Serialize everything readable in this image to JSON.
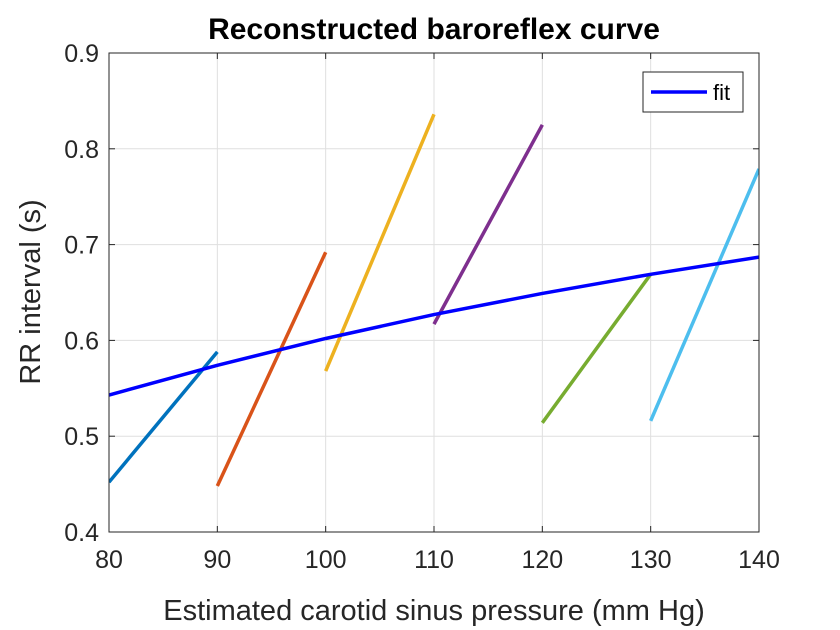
{
  "chart_data": {
    "type": "line",
    "title": "Reconstructed baroreflex curve",
    "xlabel": "Estimated carotid sinus pressure (mm Hg)",
    "ylabel": "RR interval (s)",
    "xlim": [
      80,
      140
    ],
    "ylim": [
      0.4,
      0.9
    ],
    "xticks": [
      "80",
      "90",
      "100",
      "110",
      "120",
      "130",
      "140"
    ],
    "yticks": [
      "0.4",
      "0.5",
      "0.6",
      "0.7",
      "0.8",
      "0.9"
    ],
    "grid": true,
    "legend_position": "top-right",
    "series": [
      {
        "name": "fit",
        "color": "#0000ff",
        "x": [
          80,
          90,
          100,
          110,
          120,
          130,
          140
        ],
        "y": [
          0.543,
          0.574,
          0.602,
          0.627,
          0.649,
          0.669,
          0.687
        ]
      }
    ],
    "unlabeled_segments": [
      {
        "color": "#0072bd",
        "x": [
          80,
          90
        ],
        "y": [
          0.452,
          0.588
        ]
      },
      {
        "color": "#d95319",
        "x": [
          90,
          100
        ],
        "y": [
          0.448,
          0.692
        ]
      },
      {
        "color": "#edb120",
        "x": [
          100,
          110
        ],
        "y": [
          0.568,
          0.836
        ]
      },
      {
        "color": "#7e2f8e",
        "x": [
          110,
          120
        ],
        "y": [
          0.617,
          0.825
        ]
      },
      {
        "color": "#77ac30",
        "x": [
          120,
          130
        ],
        "y": [
          0.514,
          0.669
        ]
      },
      {
        "color": "#4dbeee",
        "x": [
          130,
          140
        ],
        "y": [
          0.516,
          0.779
        ]
      }
    ]
  }
}
